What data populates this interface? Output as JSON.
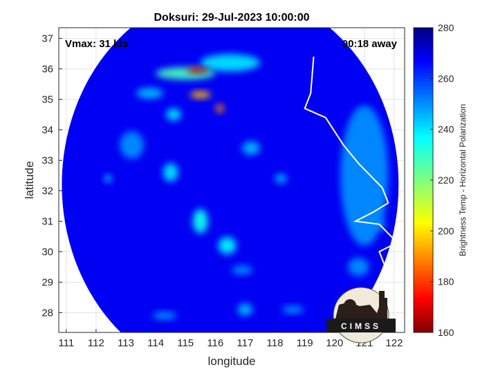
{
  "chart_data": {
    "type": "heatmap",
    "title": "Doksuri: 29-Jul-2023 10:00:00",
    "xlabel": "longitude",
    "ylabel": "latitude",
    "xlim": [
      110.75,
      122.35
    ],
    "ylim": [
      27.35,
      37.35
    ],
    "x_ticks": [
      "111",
      "112",
      "113",
      "114",
      "115",
      "116",
      "117",
      "118",
      "119",
      "120",
      "121",
      "122"
    ],
    "y_ticks": [
      "28",
      "29",
      "30",
      "31",
      "32",
      "33",
      "34",
      "35",
      "36",
      "37"
    ],
    "grid": true,
    "annotations": {
      "left": "Vmax: 31 kts",
      "right": "00:18 away"
    },
    "colorbar": {
      "label": "Brightness Temp - Horizontal Polarization",
      "min": 160,
      "max": 280,
      "ticks": [
        "160",
        "180",
        "200",
        "220",
        "240",
        "260",
        "280"
      ]
    },
    "swath": {
      "center_lon": 116.5,
      "center_lat": 32.2,
      "radius_deg": 5.65
    },
    "background_value": 268,
    "features": [
      {
        "lon": 115.4,
        "lat": 35.95,
        "sx": 0.35,
        "sy": 0.1,
        "value": 168
      },
      {
        "lon": 115.0,
        "lat": 35.85,
        "sx": 1.0,
        "sy": 0.2,
        "value": 228
      },
      {
        "lon": 116.5,
        "lat": 36.2,
        "sx": 1.0,
        "sy": 0.28,
        "value": 240
      },
      {
        "lon": 115.5,
        "lat": 35.15,
        "sx": 0.35,
        "sy": 0.12,
        "value": 195
      },
      {
        "lon": 116.15,
        "lat": 34.7,
        "sx": 0.14,
        "sy": 0.14,
        "value": 188
      },
      {
        "lon": 113.8,
        "lat": 35.2,
        "sx": 0.45,
        "sy": 0.18,
        "value": 245
      },
      {
        "lon": 114.6,
        "lat": 34.5,
        "sx": 0.25,
        "sy": 0.2,
        "value": 240
      },
      {
        "lon": 115.5,
        "lat": 31.0,
        "sx": 0.25,
        "sy": 0.4,
        "value": 235
      },
      {
        "lon": 116.4,
        "lat": 30.2,
        "sx": 0.3,
        "sy": 0.28,
        "value": 238
      },
      {
        "lon": 114.5,
        "lat": 32.6,
        "sx": 0.25,
        "sy": 0.3,
        "value": 240
      },
      {
        "lon": 117.2,
        "lat": 33.4,
        "sx": 0.3,
        "sy": 0.22,
        "value": 245
      },
      {
        "lon": 118.2,
        "lat": 32.4,
        "sx": 0.2,
        "sy": 0.15,
        "value": 245
      },
      {
        "lon": 112.4,
        "lat": 32.4,
        "sx": 0.12,
        "sy": 0.12,
        "value": 240
      },
      {
        "lon": 114.3,
        "lat": 27.9,
        "sx": 0.4,
        "sy": 0.12,
        "value": 248
      },
      {
        "lon": 117.0,
        "lat": 28.1,
        "sx": 0.25,
        "sy": 0.2,
        "value": 245
      },
      {
        "lon": 118.6,
        "lat": 28.1,
        "sx": 0.35,
        "sy": 0.12,
        "value": 248
      },
      {
        "lon": 116.9,
        "lat": 29.4,
        "sx": 0.35,
        "sy": 0.15,
        "value": 250
      },
      {
        "lon": 113.2,
        "lat": 33.5,
        "sx": 0.4,
        "sy": 0.45,
        "value": 250
      },
      {
        "lon": 121.0,
        "lat": 32.5,
        "sx": 0.8,
        "sy": 2.3,
        "value": 250
      },
      {
        "lon": 120.8,
        "lat": 29.5,
        "sx": 0.35,
        "sy": 0.3,
        "value": 250
      },
      {
        "lon": 121.5,
        "lat": 30.9,
        "sx": 0.2,
        "sy": 0.2,
        "value": 252
      }
    ]
  },
  "logo": {
    "text": "CIMSS"
  }
}
